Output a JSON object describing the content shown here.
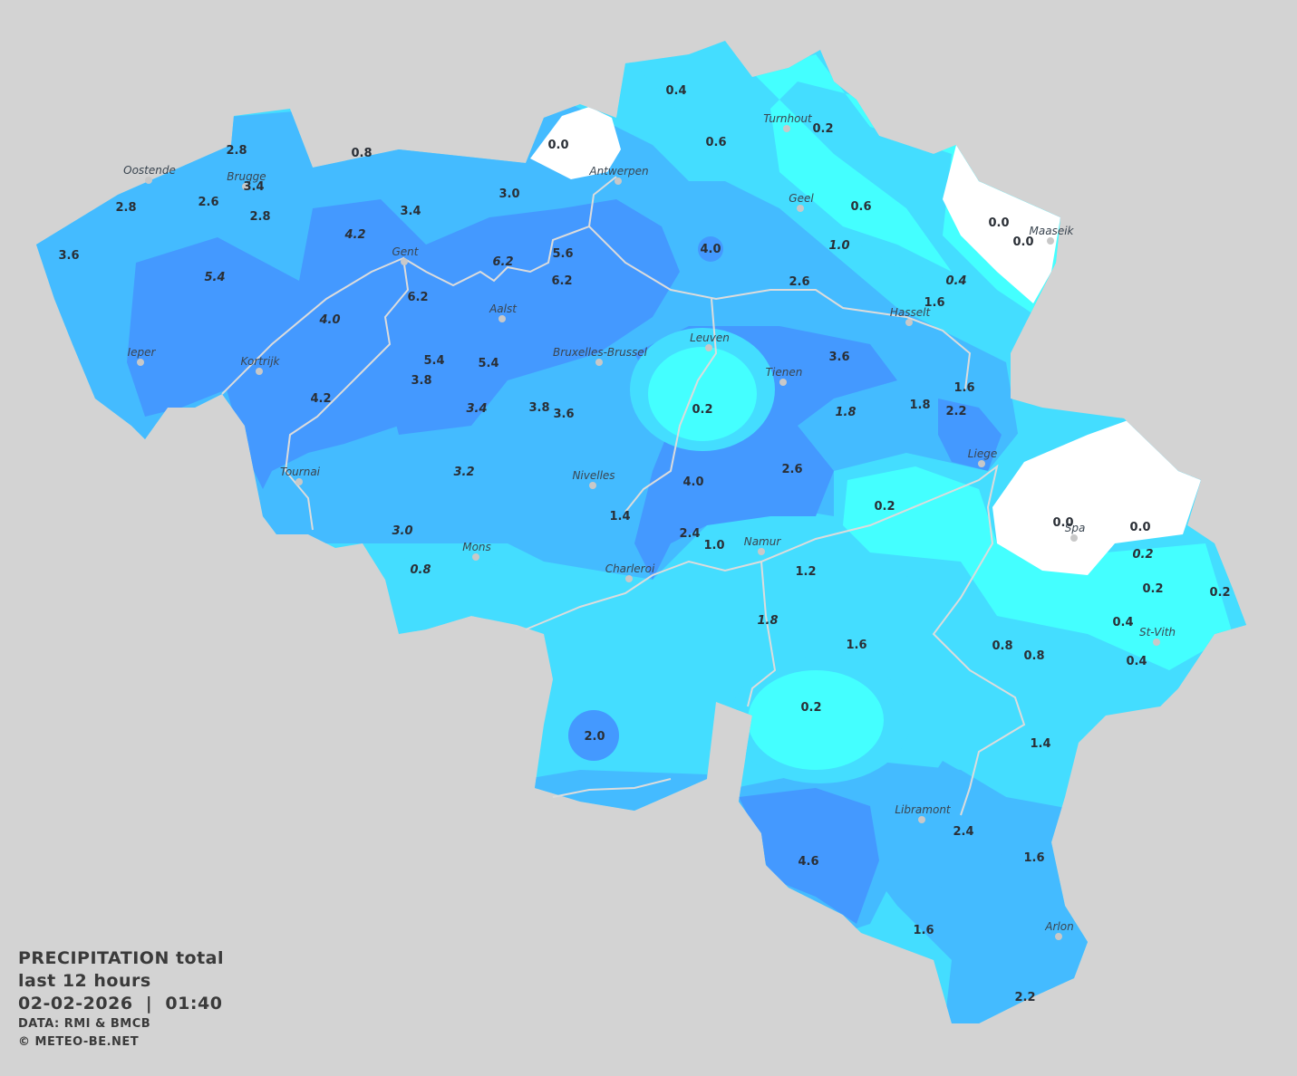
{
  "legend": {
    "title": "PRECIPITATION total",
    "period": "last 12 hours",
    "datetime": "02-02-2026  |  01:40",
    "source": "DATA: RMI & BMCB",
    "copyright": "© METEO-BE.NET"
  },
  "colors": {
    "background": "#d3d3d3",
    "no_precip": "#ffffff",
    "very_light": "#44ffff",
    "light": "#44ddff",
    "moderate": "#44bbff",
    "heavy": "#4499ff",
    "rivers": "#d8d8d8"
  },
  "cities": [
    "Oostende",
    "Brugge",
    "Antwerpen",
    "Turnhout",
    "Geel",
    "Maaseik",
    "Gent",
    "Aalst",
    "Hasselt",
    "Leuven",
    "Ieper",
    "Bruxelles-Brussel",
    "Kortrijk",
    "Tienen",
    "Liege",
    "Tournai",
    "Nivelles",
    "Spa",
    "Namur",
    "Mons",
    "Charleroi",
    "St-Vith",
    "Libramont",
    "Arlon"
  ],
  "values": [
    "0.4",
    "0.6",
    "0.2",
    "0.0",
    "0.8",
    "2.8",
    "3.4",
    "2.6",
    "2.8",
    "2.8",
    "3.6",
    "3.0",
    "3.4",
    "4.2",
    "5.4",
    "6.2",
    "5.6",
    "6.2",
    "6.2",
    "4.0",
    "4.0",
    "0.6",
    "1.0",
    "0.0",
    "0.0",
    "0.4",
    "2.6",
    "1.6",
    "3.6",
    "5.4",
    "5.4",
    "3.8",
    "4.2",
    "3.4",
    "3.8",
    "3.6",
    "0.2",
    "1.6",
    "1.8",
    "1.8",
    "2.2",
    "3.2",
    "4.0",
    "2.6",
    "0.2",
    "1.4",
    "3.0",
    "2.4",
    "1.0",
    "0.0",
    "0.0",
    "0.2",
    "0.8",
    "1.2",
    "0.2",
    "0.2",
    "1.8",
    "0.4",
    "1.6",
    "0.8",
    "0.8",
    "0.4",
    "0.2",
    "2.0",
    "1.4",
    "2.4",
    "4.6",
    "1.6",
    "1.6",
    "2.2"
  ]
}
